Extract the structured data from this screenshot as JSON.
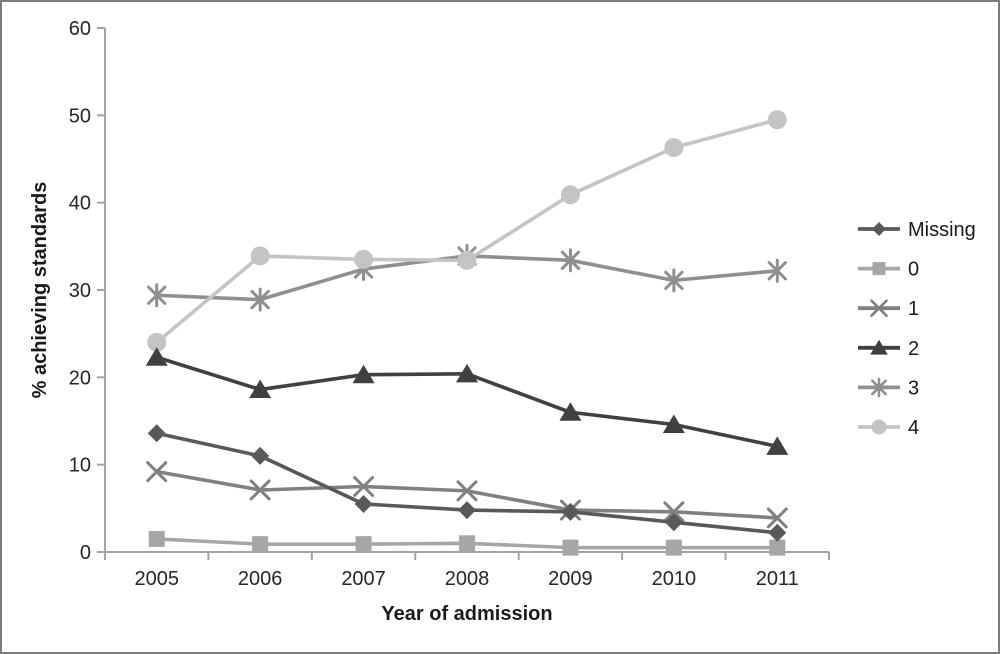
{
  "chart_data": {
    "type": "line",
    "title": "",
    "xlabel": "Year of admission",
    "ylabel": "% achieving standards",
    "categories": [
      "2005",
      "2006",
      "2007",
      "2008",
      "2009",
      "2010",
      "2011"
    ],
    "y_ticks": [
      0,
      10,
      20,
      30,
      40,
      50,
      60
    ],
    "ylim": [
      0,
      60
    ],
    "grid": false,
    "legend_position": "right",
    "axis_color": "#a3a3a3",
    "tick_text_color": "#262626",
    "series": [
      {
        "name": "Missing",
        "marker": "diamond",
        "color": "#595959",
        "values": [
          13.6,
          11.0,
          5.5,
          4.8,
          4.6,
          3.4,
          2.2
        ]
      },
      {
        "name": "0",
        "marker": "square",
        "color": "#a6a6a6",
        "values": [
          1.5,
          0.9,
          0.9,
          1.0,
          0.5,
          0.5,
          0.5
        ]
      },
      {
        "name": "1",
        "marker": "x",
        "color": "#808080",
        "values": [
          9.2,
          7.1,
          7.5,
          7.0,
          4.8,
          4.6,
          3.9
        ]
      },
      {
        "name": "2",
        "marker": "triangle",
        "color": "#404040",
        "values": [
          22.3,
          18.6,
          20.3,
          20.4,
          16.0,
          14.6,
          12.1
        ]
      },
      {
        "name": "3",
        "marker": "asterisk",
        "color": "#8f8f8f",
        "values": [
          29.4,
          28.9,
          32.4,
          33.9,
          33.4,
          31.1,
          32.2
        ]
      },
      {
        "name": "4",
        "marker": "circle",
        "color": "#c4c4c4",
        "values": [
          24.0,
          33.9,
          33.5,
          33.4,
          40.9,
          46.3,
          49.5
        ]
      }
    ]
  }
}
